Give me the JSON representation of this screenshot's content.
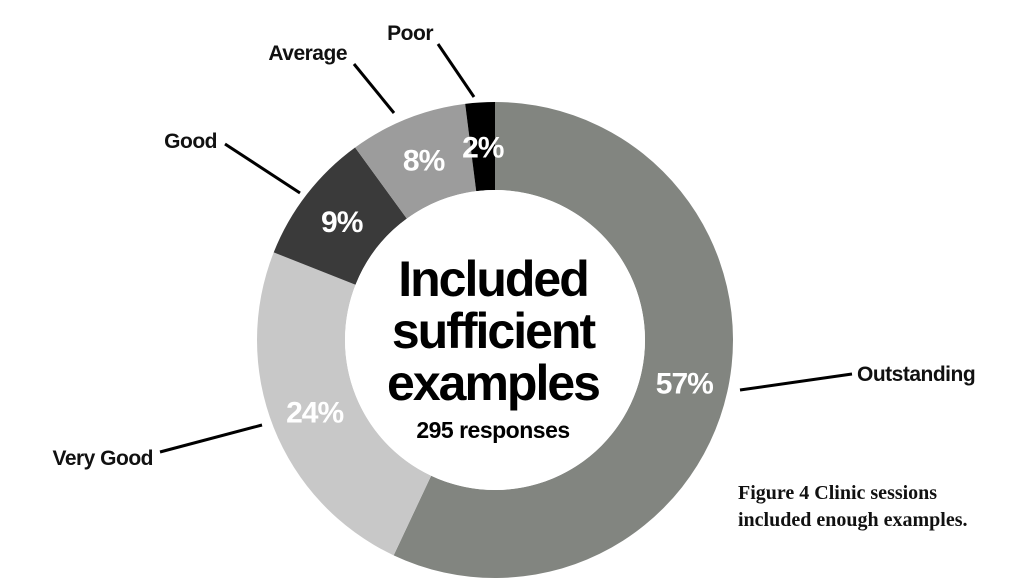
{
  "chart_data": {
    "type": "pie",
    "variant": "donut",
    "center_title_lines": [
      "Included",
      "sufficient",
      "examples"
    ],
    "center_subtitle": "295 responses",
    "slices": [
      {
        "label": "Outstanding",
        "value": 57,
        "display": "57%",
        "color": "#828580"
      },
      {
        "label": "Very Good",
        "value": 24,
        "display": "24%",
        "color": "#c8c8c8"
      },
      {
        "label": "Good",
        "value": 9,
        "display": "9%",
        "color": "#3a3a3a"
      },
      {
        "label": "Average",
        "value": 8,
        "display": "8%",
        "color": "#9c9c9c"
      },
      {
        "label": "Poor",
        "value": 2,
        "display": "2%",
        "color": "#000000"
      }
    ]
  },
  "caption": {
    "line1": "Figure 4 Clinic sessions",
    "line2": "included enough examples."
  }
}
